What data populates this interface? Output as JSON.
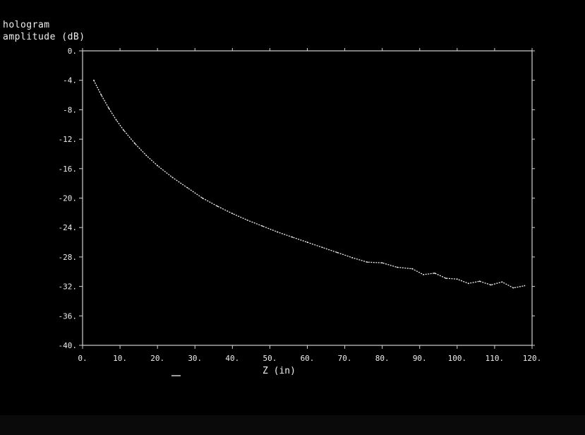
{
  "chart_data": {
    "type": "line",
    "title_lines": [
      "hologram",
      "amplitude (dB)"
    ],
    "xlabel": "Z (in)",
    "ylabel": "",
    "xlim": [
      0,
      120
    ],
    "ylim": [
      -40,
      0
    ],
    "x_ticks": [
      0,
      10,
      20,
      30,
      40,
      50,
      60,
      70,
      80,
      90,
      100,
      110,
      120
    ],
    "y_ticks": [
      0,
      -4,
      -8,
      -12,
      -16,
      -20,
      -24,
      -28,
      -32,
      -36,
      -40
    ],
    "x_tick_labels": [
      "0.",
      "10.",
      "20.",
      "30.",
      "40.",
      "50.",
      "60.",
      "70.",
      "80.",
      "90.",
      "100.",
      "110.",
      "120."
    ],
    "y_tick_labels": [
      "0.",
      "-4.",
      "-8.",
      "-12.",
      "-16.",
      "-20.",
      "-24.",
      "-28.",
      "-32.",
      "-36.",
      "-40."
    ],
    "series": [
      {
        "x": [
          3,
          5,
          7,
          9,
          11,
          14,
          17,
          20,
          24,
          28,
          32,
          36,
          40,
          44,
          48,
          52,
          56,
          60,
          64,
          68,
          72,
          76,
          80,
          84,
          88,
          91,
          94,
          97,
          100,
          103,
          106,
          109,
          112,
          115,
          118
        ],
        "y": [
          -4.0,
          -6.0,
          -7.8,
          -9.4,
          -10.8,
          -12.6,
          -14.2,
          -15.6,
          -17.2,
          -18.6,
          -20.0,
          -21.1,
          -22.1,
          -23.0,
          -23.8,
          -24.6,
          -25.3,
          -26.0,
          -26.7,
          -27.4,
          -28.1,
          -28.7,
          -28.8,
          -29.4,
          -29.6,
          -30.4,
          -30.2,
          -30.9,
          -31.0,
          -31.6,
          -31.3,
          -31.8,
          -31.4,
          -32.2,
          -31.9
        ]
      }
    ],
    "grid": false,
    "legend": "none"
  },
  "colors": {
    "background": "#000000",
    "axes": "#d0d0d0",
    "trace": "#f2f2f2",
    "text": "#eeeeee"
  }
}
